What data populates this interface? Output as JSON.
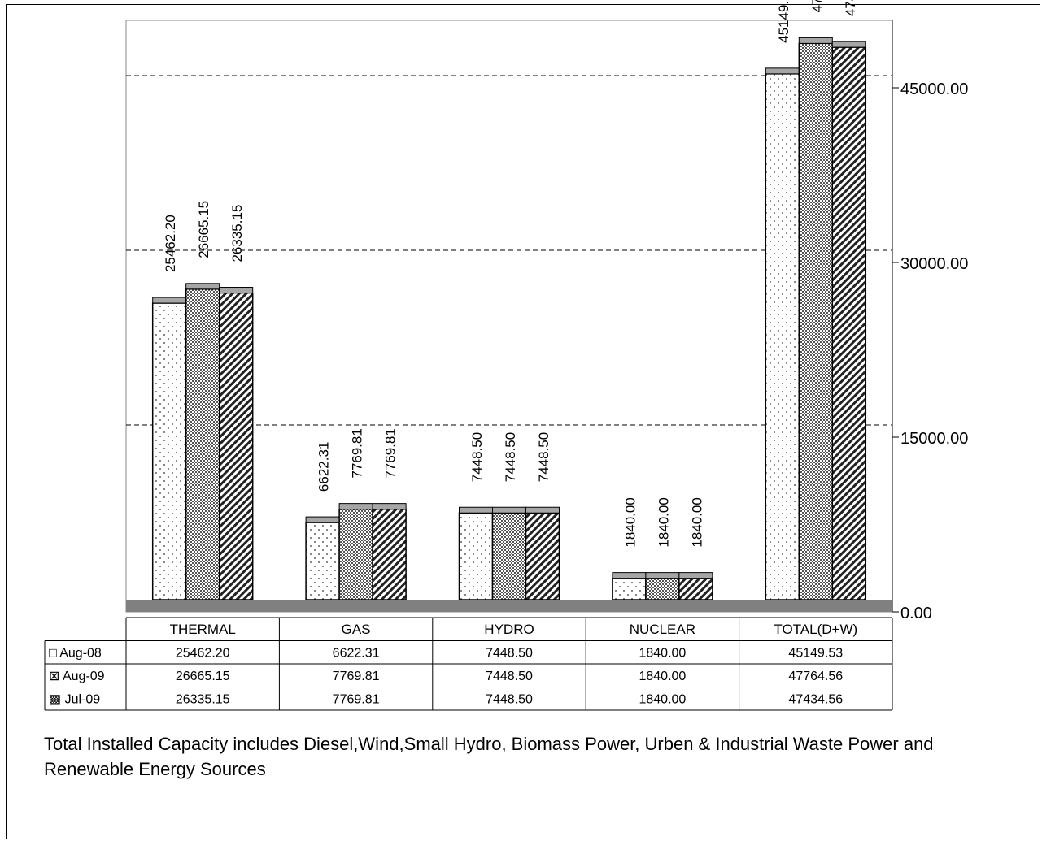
{
  "chart_data": {
    "type": "bar",
    "categories": [
      "THERMAL",
      "GAS",
      "HYDRO",
      "NUCLEAR",
      "TOTAL(D+W)"
    ],
    "series": [
      {
        "name": "Aug-08",
        "values": [
          25462.2,
          6622.31,
          7448.5,
          1840.0,
          45149.53
        ]
      },
      {
        "name": "Aug-09",
        "values": [
          26665.15,
          7769.81,
          7448.5,
          1840.0,
          47764.56
        ]
      },
      {
        "name": "Jul-09",
        "values": [
          26335.15,
          7769.81,
          7448.5,
          1840.0,
          47434.56
        ]
      }
    ],
    "value_labels": [
      [
        "25462.20",
        "6622.31",
        "7448.50",
        "1840.00",
        "45149.53"
      ],
      [
        "26665.15",
        "7769.81",
        "7448.50",
        "1840.00",
        "47764.56"
      ],
      [
        "26335.15",
        "7769.81",
        "7448.50",
        "1840.00",
        "47434.56"
      ]
    ],
    "y_ticks": [
      "0.00",
      "15000.00",
      "30000.00",
      "45000.00"
    ],
    "y_tick_values": [
      0,
      15000,
      30000,
      45000
    ],
    "ylim": [
      0,
      45000
    ],
    "y_axis_side": "right",
    "grid": "dashed horizontal",
    "legend": "data table below chart",
    "series_patterns": [
      "dots",
      "crosshatch",
      "diagonal-stripes"
    ],
    "colors": {
      "floor": "#808080",
      "bar_top": "#a6a6a6",
      "outline": "#000000",
      "background": "#ffffff"
    }
  },
  "footnote": "Total Installed Capacity includes Diesel,Wind,Small Hydro, Biomass Power, Urben & Industrial Waste Power and Renewable Energy Sources"
}
